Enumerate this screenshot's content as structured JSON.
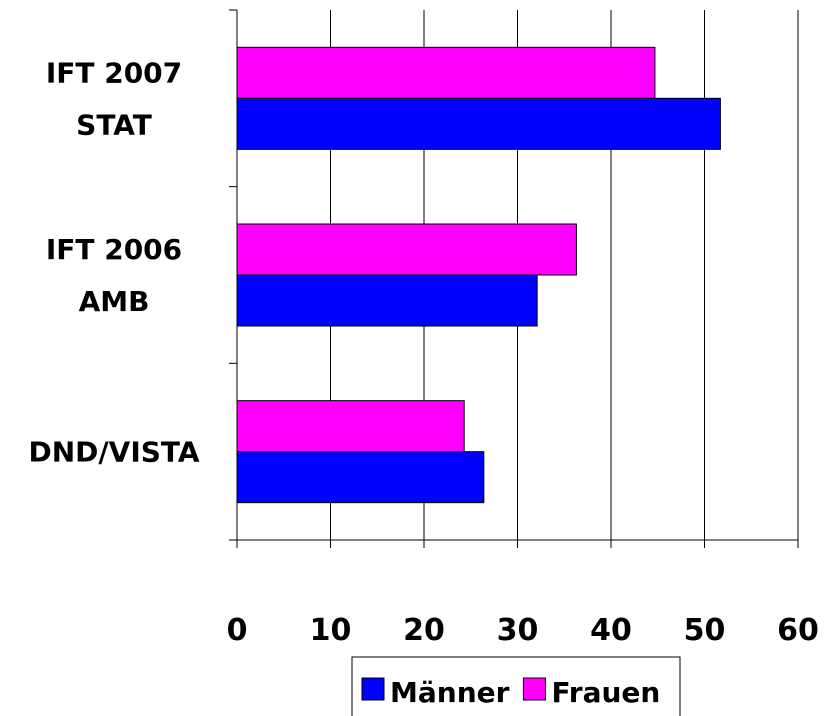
{
  "chart_data": {
    "type": "hbar",
    "categories": [
      "IFT 2007\nSTAT",
      "IFT 2006\nAMB",
      "DND/VISTA"
    ],
    "series": [
      {
        "name": "Männer",
        "color": "#0000ff",
        "values": [
          51.7,
          32.1,
          26.4
        ]
      },
      {
        "name": "Frauen",
        "color": "#ff00ff",
        "values": [
          44.7,
          36.3,
          24.3
        ]
      }
    ],
    "xlim": [
      0,
      60
    ],
    "xticks": [
      0,
      10,
      20,
      30,
      40,
      50,
      60
    ],
    "grid": true
  }
}
